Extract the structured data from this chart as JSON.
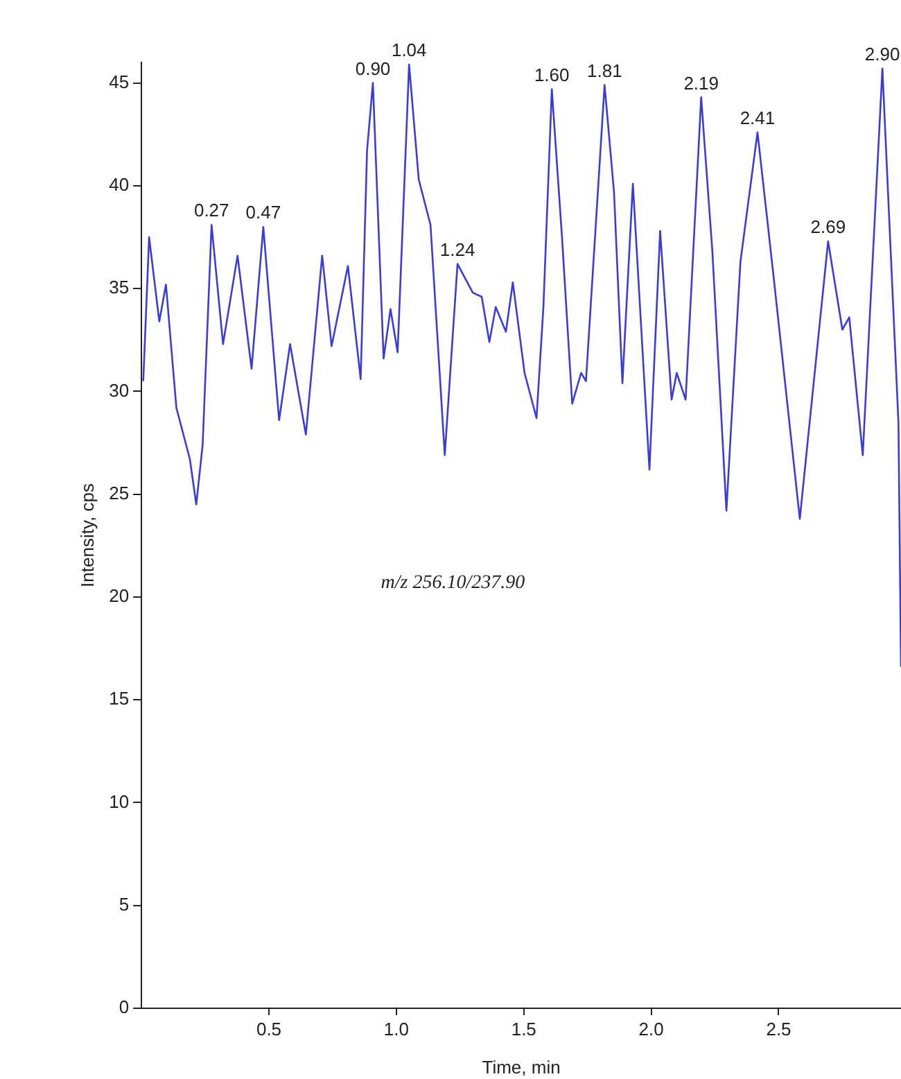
{
  "chart_data": {
    "type": "line",
    "xlabel": "Time, min",
    "ylabel": "Intensity, cps",
    "xlim": [
      0,
      2.98
    ],
    "xticks": [
      {
        "value": 0.5,
        "label": "0.5"
      },
      {
        "value": 1.0,
        "label": "1.0"
      },
      {
        "value": 1.5,
        "label": "1.5"
      },
      {
        "value": 2.0,
        "label": "2.0"
      },
      {
        "value": 2.5,
        "label": "2.5"
      }
    ],
    "ylim": [
      0,
      46
    ],
    "yticks": [
      0,
      5,
      10,
      15,
      20,
      25,
      30,
      35,
      40,
      45
    ],
    "grid": false,
    "legend": false,
    "marker": "none",
    "line_style": "solid",
    "series": [
      {
        "color": "#3b3bdc",
        "x": [
          0.007,
          0.03,
          0.07,
          0.096,
          0.137,
          0.19,
          0.215,
          0.24,
          0.275,
          0.32,
          0.377,
          0.432,
          0.478,
          0.54,
          0.583,
          0.645,
          0.709,
          0.746,
          0.81,
          0.86,
          0.885,
          0.908,
          0.95,
          0.977,
          1.005,
          1.05,
          1.088,
          1.134,
          1.19,
          1.24,
          1.3,
          1.335,
          1.365,
          1.39,
          1.43,
          1.457,
          1.503,
          1.55,
          1.577,
          1.61,
          1.65,
          1.69,
          1.725,
          1.744,
          1.817,
          1.854,
          1.887,
          1.928,
          1.993,
          2.035,
          2.08,
          2.1,
          2.135,
          2.196,
          2.24,
          2.295,
          2.35,
          2.417,
          2.48,
          2.583,
          2.694,
          2.75,
          2.777,
          2.83,
          2.907,
          2.97,
          2.98
        ],
        "values": [
          30.5,
          37.5,
          33.4,
          35.2,
          29.2,
          26.7,
          24.5,
          27.4,
          38.1,
          32.3,
          36.6,
          31.1,
          38.0,
          28.6,
          32.3,
          27.9,
          36.6,
          32.2,
          36.1,
          30.6,
          41.7,
          45.0,
          31.6,
          34.0,
          31.9,
          45.9,
          40.3,
          38.1,
          26.9,
          36.2,
          34.8,
          34.6,
          32.4,
          34.1,
          32.9,
          35.3,
          30.9,
          28.7,
          34.1,
          44.7,
          37.5,
          29.4,
          30.9,
          30.5,
          44.9,
          39.7,
          30.4,
          40.1,
          26.2,
          37.8,
          29.6,
          30.9,
          29.6,
          44.3,
          36.8,
          24.2,
          36.3,
          42.6,
          35.6,
          23.8,
          37.3,
          33.0,
          33.6,
          26.9,
          45.7,
          28.5,
          16.6
        ]
      }
    ],
    "annotations": [
      {
        "text": "0.27",
        "x": 0.275,
        "y": 38.1
      },
      {
        "text": "0.47",
        "x": 0.478,
        "y": 38.0
      },
      {
        "text": "0.90",
        "x": 0.908,
        "y": 45.0
      },
      {
        "text": "1.04",
        "x": 1.05,
        "y": 45.9
      },
      {
        "text": "1.24",
        "x": 1.24,
        "y": 36.2
      },
      {
        "text": "1.60",
        "x": 1.61,
        "y": 44.7
      },
      {
        "text": "1.81",
        "x": 1.817,
        "y": 44.9
      },
      {
        "text": "2.19",
        "x": 2.196,
        "y": 44.3
      },
      {
        "text": "2.41",
        "x": 2.417,
        "y": 42.6
      },
      {
        "text": "2.69",
        "x": 2.694,
        "y": 37.3
      },
      {
        "text": "2.90",
        "x": 2.907,
        "y": 45.7
      },
      "m/z 256.10/237.90"
    ]
  }
}
